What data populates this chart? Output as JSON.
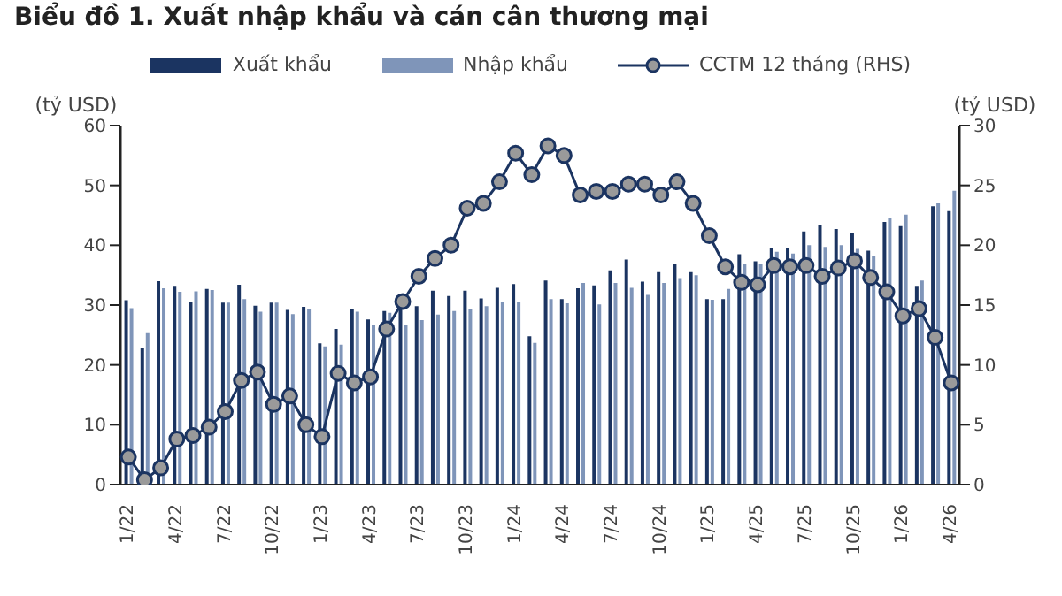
{
  "chart_data": {
    "type": "bar",
    "title": "Biểu đồ 1. Xuất nhập khẩu và cán cân thương mại",
    "ylabel": "(tỷ USD)",
    "y2label": "(tỷ USD)",
    "categories": [
      "1/22",
      null,
      null,
      "4/22",
      null,
      null,
      "7/22",
      null,
      null,
      "10/22",
      null,
      null,
      "1/23",
      null,
      null,
      "4/23",
      null,
      null,
      "7/23",
      null,
      null,
      "10/23",
      null,
      null,
      "1/24",
      null,
      null,
      "4/24",
      null,
      null,
      "7/24",
      null,
      null,
      "10/24",
      null,
      null,
      "1/25",
      null,
      null,
      "4/25",
      null,
      null,
      "7/25",
      null,
      null,
      "10/25",
      null,
      null,
      "1/26",
      null,
      null,
      "4/26"
    ],
    "series": [
      {
        "name": "Xuất khẩu",
        "color": "#1b3461",
        "values": [
          30.8,
          22.9,
          34,
          33.2,
          30.6,
          32.7,
          30.4,
          33.4,
          29.9,
          30.4,
          29.2,
          29.7,
          23.6,
          26,
          29.4,
          27.6,
          29,
          29.8,
          29.8,
          32.4,
          31.5,
          32.4,
          31.1,
          32.9,
          33.5,
          24.8,
          34.1,
          31,
          32.8,
          33.3,
          35.8,
          37.6,
          33.9,
          35.5,
          36.9,
          35.5,
          31,
          31,
          38.5,
          37.3,
          39.6,
          39.6,
          42.3,
          43.4,
          42.7,
          42.1,
          39.1,
          43.9,
          43.2,
          33.2,
          46.5,
          45.7
        ]
      },
      {
        "name": "Nhập khẩu",
        "color": "#7f95b9",
        "values": [
          29.5,
          25.3,
          32.8,
          32.2,
          32.3,
          32.5,
          30.4,
          31,
          28.9,
          30.4,
          28.5,
          29.3,
          23.1,
          23.4,
          28.9,
          26.6,
          28.7,
          26.7,
          27.5,
          28.4,
          29,
          29.3,
          29.8,
          30.6,
          30.6,
          23.7,
          31,
          30.3,
          33.7,
          30.1,
          33.7,
          32.9,
          31.7,
          33.7,
          34.5,
          35,
          30.9,
          32.7,
          36.9,
          36.9,
          38.9,
          38.6,
          40,
          39.7,
          40,
          39.4,
          38.2,
          44.5,
          45.1,
          34.1,
          47,
          49.1
        ]
      },
      {
        "name": "CCTM 12 tháng (RHS)",
        "type": "line",
        "axis": "y2",
        "color": "#1b3461",
        "values": [
          2.3,
          0.4,
          1.4,
          3.8,
          4.1,
          4.8,
          6.1,
          8.7,
          9.4,
          6.7,
          7.4,
          5,
          4,
          9.3,
          8.5,
          9,
          13,
          15.3,
          17.4,
          18.9,
          20,
          23.1,
          23.5,
          25.3,
          27.7,
          25.9,
          28.3,
          27.5,
          24.2,
          24.5,
          24.5,
          25.1,
          25.1,
          24.2,
          25.3,
          23.5,
          20.8,
          18.2,
          16.9,
          16.7,
          18.3,
          18.2,
          18.3,
          17.4,
          18.1,
          18.7,
          17.3,
          16.1,
          14.1,
          14.7,
          12.3,
          8.5
        ]
      }
    ],
    "ylim": [
      0,
      60
    ],
    "yticks": [
      0,
      10,
      20,
      30,
      40,
      50,
      60
    ],
    "y2lim": [
      0,
      30
    ],
    "y2ticks": [
      0,
      5,
      10,
      15,
      20,
      25,
      30
    ],
    "grid": false,
    "legend": "top",
    "marker": "circle"
  }
}
